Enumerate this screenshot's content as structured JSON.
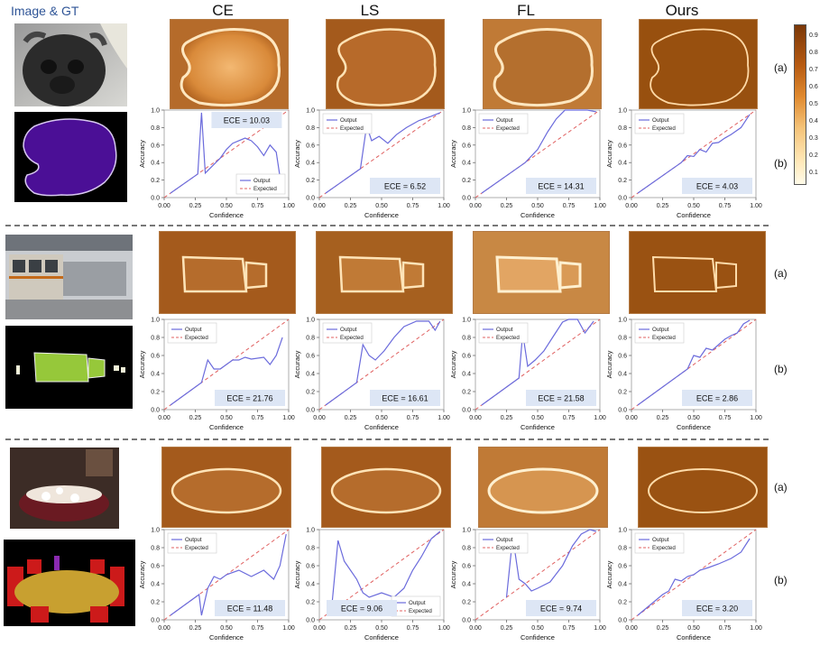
{
  "header": {
    "image_gt": "Image & GT",
    "methods": [
      "CE",
      "LS",
      "FL",
      "Ours"
    ]
  },
  "row_tags": {
    "a": "(a)",
    "b": "(b)"
  },
  "colorbar": {
    "ticks": [
      "0.9",
      "0.8",
      "0.7",
      "0.6",
      "0.5",
      "0.4",
      "0.3",
      "0.2",
      "0.1"
    ]
  },
  "axis_text": {
    "xlabel": "Confidence",
    "ylabel": "Accuracy",
    "xticks": [
      "0.00",
      "0.25",
      "0.50",
      "0.75",
      "1.00"
    ],
    "yticks": [
      "0.0",
      "0.2",
      "0.4",
      "0.6",
      "0.8",
      "1.0"
    ],
    "legend_output": "Output",
    "legend_expected": "Expected"
  },
  "chart_data": [
    {
      "type": "line",
      "row": 1,
      "method": "CE",
      "ece_label": "ECE = 10.03",
      "legend": "bottom-right",
      "xlim": [
        0,
        1
      ],
      "ylim": [
        0,
        1
      ],
      "x": [
        0.05,
        0.27,
        0.3,
        0.33,
        0.4,
        0.45,
        0.5,
        0.55,
        0.6,
        0.65,
        0.7,
        0.75,
        0.8,
        0.85,
        0.9,
        0.95
      ],
      "y": [
        0.05,
        0.27,
        0.97,
        0.28,
        0.38,
        0.45,
        0.55,
        0.62,
        0.65,
        0.68,
        0.65,
        0.58,
        0.48,
        0.6,
        0.52,
        0.05
      ]
    },
    {
      "type": "line",
      "row": 1,
      "method": "LS",
      "ece_label": "ECE = 6.52",
      "legend": "top-left",
      "xlim": [
        0,
        1
      ],
      "ylim": [
        0,
        1
      ],
      "x": [
        0.05,
        0.33,
        0.38,
        0.42,
        0.48,
        0.55,
        0.62,
        0.7,
        0.8,
        0.9,
        0.97
      ],
      "y": [
        0.05,
        0.33,
        0.82,
        0.65,
        0.7,
        0.62,
        0.72,
        0.8,
        0.88,
        0.93,
        0.97
      ]
    },
    {
      "type": "line",
      "row": 1,
      "method": "FL",
      "ece_label": "ECE = 14.31",
      "legend": "top-left",
      "xlim": [
        0,
        1
      ],
      "ylim": [
        0,
        1
      ],
      "x": [
        0.05,
        0.4,
        0.5,
        0.58,
        0.65,
        0.72,
        0.8,
        0.9,
        0.97
      ],
      "y": [
        0.05,
        0.4,
        0.55,
        0.75,
        0.9,
        1.0,
        1.0,
        1.0,
        0.98
      ]
    },
    {
      "type": "line",
      "row": 1,
      "method": "Ours",
      "ece_label": "ECE = 4.03",
      "legend": "top-left",
      "xlim": [
        0,
        1
      ],
      "ylim": [
        0,
        1
      ],
      "x": [
        0.05,
        0.4,
        0.45,
        0.5,
        0.55,
        0.6,
        0.65,
        0.7,
        0.75,
        0.8,
        0.88,
        0.95
      ],
      "y": [
        0.05,
        0.4,
        0.48,
        0.47,
        0.55,
        0.52,
        0.62,
        0.63,
        0.68,
        0.72,
        0.8,
        0.95
      ]
    },
    {
      "type": "line",
      "row": 2,
      "method": "CE",
      "ece_label": "ECE = 21.76",
      "legend": "top-left",
      "xlim": [
        0,
        1
      ],
      "ylim": [
        0,
        1
      ],
      "x": [
        0.05,
        0.3,
        0.35,
        0.4,
        0.45,
        0.5,
        0.55,
        0.6,
        0.65,
        0.7,
        0.8,
        0.85,
        0.9,
        0.95
      ],
      "y": [
        0.05,
        0.3,
        0.55,
        0.45,
        0.45,
        0.5,
        0.55,
        0.55,
        0.58,
        0.56,
        0.58,
        0.5,
        0.6,
        0.8
      ]
    },
    {
      "type": "line",
      "row": 2,
      "method": "LS",
      "ece_label": "ECE = 16.61",
      "legend": "top-left",
      "xlim": [
        0,
        1
      ],
      "ylim": [
        0,
        1
      ],
      "x": [
        0.05,
        0.3,
        0.35,
        0.4,
        0.45,
        0.52,
        0.6,
        0.68,
        0.78,
        0.88,
        0.93,
        0.97
      ],
      "y": [
        0.05,
        0.3,
        0.72,
        0.6,
        0.55,
        0.65,
        0.8,
        0.92,
        0.98,
        0.98,
        0.88,
        0.98
      ]
    },
    {
      "type": "line",
      "row": 2,
      "method": "FL",
      "ece_label": "ECE = 21.58",
      "legend": "top-left",
      "xlim": [
        0,
        1
      ],
      "ylim": [
        0,
        1
      ],
      "x": [
        0.05,
        0.35,
        0.38,
        0.42,
        0.48,
        0.55,
        0.62,
        0.7,
        0.75,
        0.82,
        0.88,
        0.95
      ],
      "y": [
        0.05,
        0.35,
        0.85,
        0.48,
        0.55,
        0.65,
        0.8,
        0.97,
        1.0,
        1.0,
        0.85,
        0.98
      ]
    },
    {
      "type": "line",
      "row": 2,
      "method": "Ours",
      "ece_label": "ECE = 2.86",
      "legend": "top-left",
      "xlim": [
        0,
        1
      ],
      "ylim": [
        0,
        1
      ],
      "x": [
        0.05,
        0.45,
        0.5,
        0.55,
        0.6,
        0.65,
        0.7,
        0.75,
        0.8,
        0.85,
        0.9,
        0.95
      ],
      "y": [
        0.05,
        0.45,
        0.6,
        0.58,
        0.68,
        0.66,
        0.72,
        0.78,
        0.82,
        0.85,
        0.95,
        0.99
      ]
    },
    {
      "type": "line",
      "row": 3,
      "method": "CE",
      "ece_label": "ECE = 11.48",
      "legend": "top-left",
      "xlim": [
        0,
        1
      ],
      "ylim": [
        0,
        1
      ],
      "x": [
        0.05,
        0.28,
        0.3,
        0.35,
        0.4,
        0.45,
        0.5,
        0.6,
        0.7,
        0.8,
        0.88,
        0.93,
        0.98
      ],
      "y": [
        0.05,
        0.28,
        0.05,
        0.35,
        0.48,
        0.45,
        0.5,
        0.55,
        0.48,
        0.55,
        0.45,
        0.6,
        0.95
      ]
    },
    {
      "type": "line",
      "row": 3,
      "method": "LS",
      "ece_label": "ECE = 9.06",
      "legend": "bottom-right",
      "xlim": [
        0,
        1
      ],
      "ylim": [
        0,
        1
      ],
      "x": [
        0.1,
        0.15,
        0.2,
        0.25,
        0.3,
        0.35,
        0.4,
        0.5,
        0.6,
        0.68,
        0.75,
        0.82,
        0.9,
        0.97
      ],
      "y": [
        0.15,
        0.88,
        0.65,
        0.55,
        0.45,
        0.3,
        0.25,
        0.3,
        0.25,
        0.35,
        0.55,
        0.7,
        0.9,
        0.98
      ]
    },
    {
      "type": "line",
      "row": 3,
      "method": "FL",
      "ece_label": "ECE = 9.74",
      "legend": "top-left",
      "xlim": [
        0,
        1
      ],
      "ylim": [
        0,
        1
      ],
      "x": [
        0.25,
        0.3,
        0.35,
        0.4,
        0.45,
        0.5,
        0.6,
        0.7,
        0.78,
        0.85,
        0.92,
        0.97
      ],
      "y": [
        0.25,
        0.92,
        0.45,
        0.4,
        0.32,
        0.35,
        0.42,
        0.6,
        0.82,
        0.95,
        1.0,
        0.98
      ]
    },
    {
      "type": "line",
      "row": 3,
      "method": "Ours",
      "ece_label": "ECE = 3.20",
      "legend": "top-left",
      "xlim": [
        0,
        1
      ],
      "ylim": [
        0,
        1
      ],
      "x": [
        0.05,
        0.25,
        0.3,
        0.35,
        0.4,
        0.45,
        0.5,
        0.55,
        0.62,
        0.7,
        0.8,
        0.88,
        0.95
      ],
      "y": [
        0.05,
        0.28,
        0.32,
        0.45,
        0.43,
        0.48,
        0.5,
        0.55,
        0.58,
        0.62,
        0.68,
        0.75,
        0.9
      ]
    }
  ]
}
